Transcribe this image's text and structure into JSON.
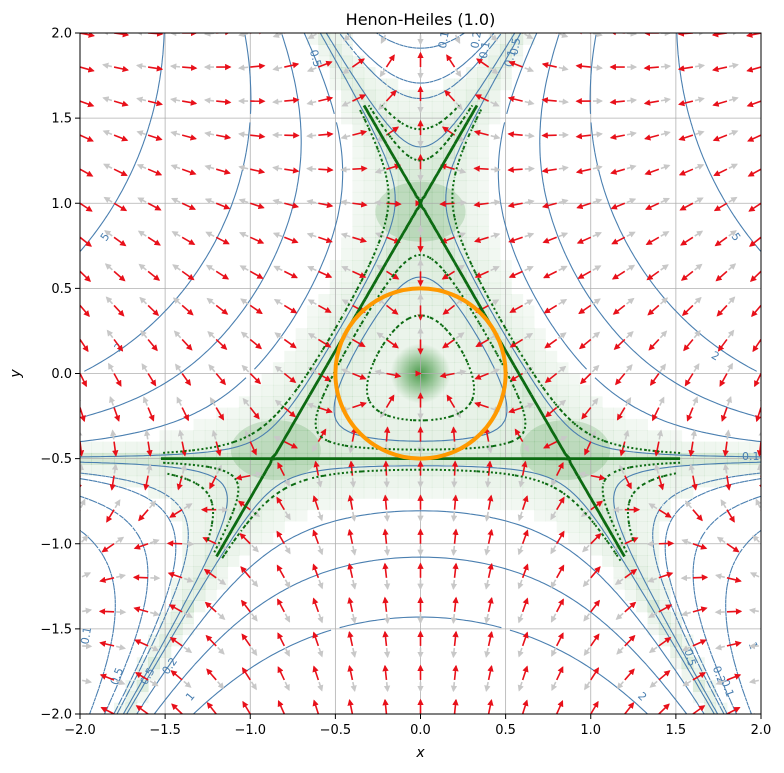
{
  "chart_data": {
    "type": "contour",
    "title": "Henon-Heiles (1.0)",
    "xlabel": "x",
    "ylabel": "y",
    "xlim": [
      -2.0,
      2.0
    ],
    "ylim": [
      -2.0,
      2.0
    ],
    "xticks": [
      "−2.0",
      "−1.5",
      "−1.0",
      "−0.5",
      "0.0",
      "0.5",
      "1.0",
      "1.5",
      "2.0"
    ],
    "yticks": [
      "2.0",
      "1.5",
      "1.0",
      "0.5",
      "0.0",
      "−0.5",
      "−1.0",
      "−1.5",
      "−2.0"
    ],
    "grid": true,
    "potential_levels": [
      -1,
      -0.5,
      -0.2,
      -0.1,
      0.1,
      0.2,
      0.5,
      1,
      2,
      5
    ],
    "contour_labels": [
      "5",
      "2",
      "0.5",
      "0.1",
      "0.1",
      "0.5",
      "0.2",
      "0.1",
      "1",
      "2",
      "5",
      "0.1",
      "0.5",
      "0.1",
      "0.2",
      "1",
      "0.5",
      "0.2",
      "0.1",
      "1",
      "2",
      "0.5",
      "1"
    ],
    "escape_energy": 0.1667,
    "circle_radius": 0.5,
    "colors": {
      "contour": "#4a7fb0",
      "force_arrow": "#e8101a",
      "gradient_arrow": "#c8c8c8",
      "boundary": "#0c6b12",
      "circle": "#ff9900",
      "shade": "#2e8b2e"
    }
  }
}
